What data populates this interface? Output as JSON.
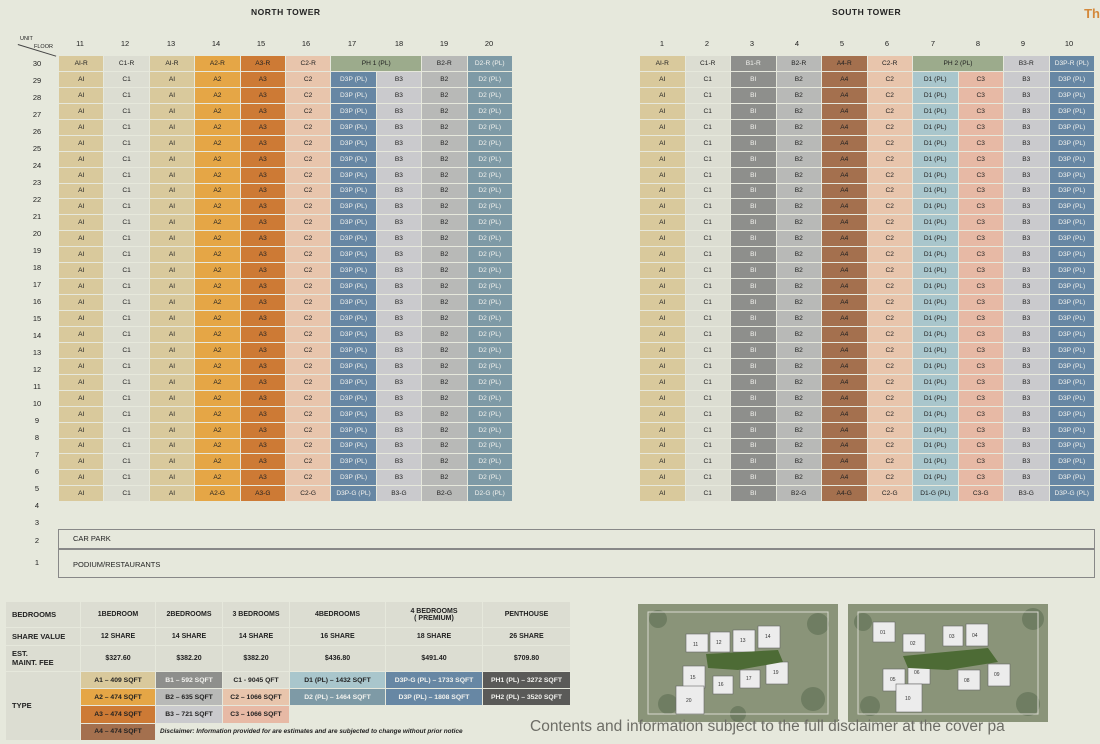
{
  "corner": {
    "text": "Th"
  },
  "axis": {
    "unit": "UNIT",
    "floor": "FLOOR"
  },
  "towers": [
    {
      "name": "NORTH TOWER",
      "stacks": [
        "11",
        "12",
        "13",
        "14",
        "15",
        "16",
        "17",
        "18",
        "19",
        "20"
      ],
      "roof_row": [
        [
          "AI-R",
          "A1"
        ],
        [
          "C1-R",
          "C1"
        ],
        [
          "AI-R",
          "A1"
        ],
        [
          "A2-R",
          "A2"
        ],
        [
          "A3-R",
          "A3"
        ],
        [
          "C2-R",
          "C2"
        ],
        [
          "PH 1 (PL)",
          "PH",
          2
        ],
        [
          "B2-R",
          "B2"
        ],
        [
          "D2-R (PL)",
          "D2"
        ]
      ],
      "typical_units": [
        "AI",
        "C1",
        "AI",
        "A2",
        "A3",
        "C2",
        "D3P (PL)",
        "B3",
        "B2",
        "D2 (PL)"
      ],
      "typical_types": [
        "A1",
        "C1",
        "A1",
        "A2",
        "A3",
        "C2",
        "D3P",
        "B3",
        "B2",
        "D2"
      ],
      "ground_units": [
        "AI",
        "C1",
        "AI",
        "A2-G",
        "A3-G",
        "C2-G",
        "D3P-G (PL)",
        "B3-G",
        "B2-G",
        "D2-G (PL)"
      ]
    },
    {
      "name": "SOUTH TOWER",
      "stacks": [
        "1",
        "2",
        "3",
        "4",
        "5",
        "6",
        "7",
        "8",
        "9",
        "10"
      ],
      "roof_row": [
        [
          "AI-R",
          "A1"
        ],
        [
          "C1-R",
          "C1"
        ],
        [
          "B1-R",
          "B1"
        ],
        [
          "B2-R",
          "B2"
        ],
        [
          "A4-R",
          "A4"
        ],
        [
          "C2-R",
          "C2"
        ],
        [
          "PH 2 (PL)",
          "PH",
          2
        ],
        [
          "B3-R",
          "B3"
        ],
        [
          "D3P-R (PL)",
          "D3P"
        ]
      ],
      "typical_units": [
        "AI",
        "C1",
        "BI",
        "B2",
        "A4",
        "C2",
        "D1 (PL)",
        "C3",
        "B3",
        "D3P (PL)"
      ],
      "typical_types": [
        "A1",
        "C1",
        "B1",
        "B2",
        "A4",
        "C2",
        "D1",
        "C3",
        "B3",
        "D3P"
      ],
      "ground_units": [
        "AI",
        "C1",
        "BI",
        "B2-G",
        "A4-G",
        "C2-G",
        "D1-G (PL)",
        "C3-G",
        "B3-G",
        "D3P-G (PL)"
      ]
    }
  ],
  "floors": [
    "30",
    "29",
    "28",
    "27",
    "26",
    "25",
    "24",
    "23",
    "22",
    "21",
    "20",
    "19",
    "18",
    "17",
    "16",
    "15",
    "14",
    "13",
    "12",
    "11",
    "10",
    "9",
    "8",
    "7",
    "6",
    "5",
    "4",
    "3"
  ],
  "lower_floors": [
    {
      "floor": "2",
      "label": "CAR PARK"
    },
    {
      "floor": "1",
      "label": "PODIUM/RESTAURANTS"
    }
  ],
  "colors": {
    "A1": "#d9c99c",
    "C1": "#dcddd2",
    "A2": "#e5a646",
    "A3": "#cd7a35",
    "A4": "#a4704e",
    "B1": "#8e8f8c",
    "B2": "#b8b9b7",
    "B3": "#cacacd",
    "C2": "#e8c5ac",
    "C3": "#e7b9a5",
    "D1": "#a9c6cc",
    "D2": "#7e9aa6",
    "D3P": "#6787a4",
    "PH": "#9cab8c",
    "PH_DARK": "#5a5a58"
  },
  "key": {
    "row_labels": {
      "bedrooms": "BEDROOMS",
      "share": "SHARE VALUE",
      "fee": "EST.\nMAINT. FEE",
      "type": "TYPE"
    },
    "columns": [
      {
        "bedrooms": "1BEDROOM",
        "share": "12 SHARE",
        "fee": "$327.60"
      },
      {
        "bedrooms": "2BEDROOMS",
        "share": "14 SHARE",
        "fee": "$382.20"
      },
      {
        "bedrooms": "3 BEDROOMS",
        "share": "14 SHARE",
        "fee": "$382.20"
      },
      {
        "bedrooms": "4BEDROOMS",
        "share": "16 SHARE",
        "fee": "$436.80"
      },
      {
        "bedrooms": "4 BEDROOMS\n( PREMIUM)",
        "share": "18 SHARE",
        "fee": "$491.40"
      },
      {
        "bedrooms": "PENTHOUSE",
        "share": "26 SHARE",
        "fee": "$709.80"
      }
    ],
    "types": [
      [
        [
          "A1 – 409 SQFT",
          "A1"
        ],
        [
          "B1 – 592 SQFT",
          "B1"
        ],
        [
          "C1 - 9045 QFT",
          "C1"
        ],
        [
          "D1 (PL) – 1432 SQFT",
          "D1"
        ],
        [
          "D3P-G (PL) – 1733 SQFT",
          "D3P"
        ],
        [
          "PH1 (PL) – 3272 SQFT",
          "PH_DARK"
        ]
      ],
      [
        [
          "A2 – 474 SQFT",
          "A2"
        ],
        [
          "B2 – 635 SQFT",
          "B2"
        ],
        [
          "C2 – 1066 SQFT",
          "C2"
        ],
        [
          "D2 (PL) – 1464 SQFT",
          "D2"
        ],
        [
          "D3P (PL) – 1808 SQFT",
          "D3P"
        ],
        [
          "PH2 (PL) – 3520 SQFT",
          "PH_DARK"
        ]
      ],
      [
        [
          "A3 – 474 SQFT",
          "A3"
        ],
        [
          "B3 – 721 SQFT",
          "B3"
        ],
        [
          "C3 – 1066 SQFT",
          "C3"
        ]
      ],
      [
        [
          "A4 – 474 SQFT",
          "A4"
        ]
      ]
    ],
    "disclaimer": "Disclaimer: Information provided for are estimates and are subjected to change without prior notice"
  },
  "map_labels": {
    "north": [
      "11",
      "12",
      "13",
      "14",
      "15",
      "16",
      "17",
      "19",
      "20"
    ],
    "south": [
      "01",
      "02",
      "03",
      "04",
      "05",
      "06",
      "08",
      "09",
      "10"
    ]
  },
  "footer_disclaimer": "Contents and information subject to the full disclaimer at the cover pa"
}
